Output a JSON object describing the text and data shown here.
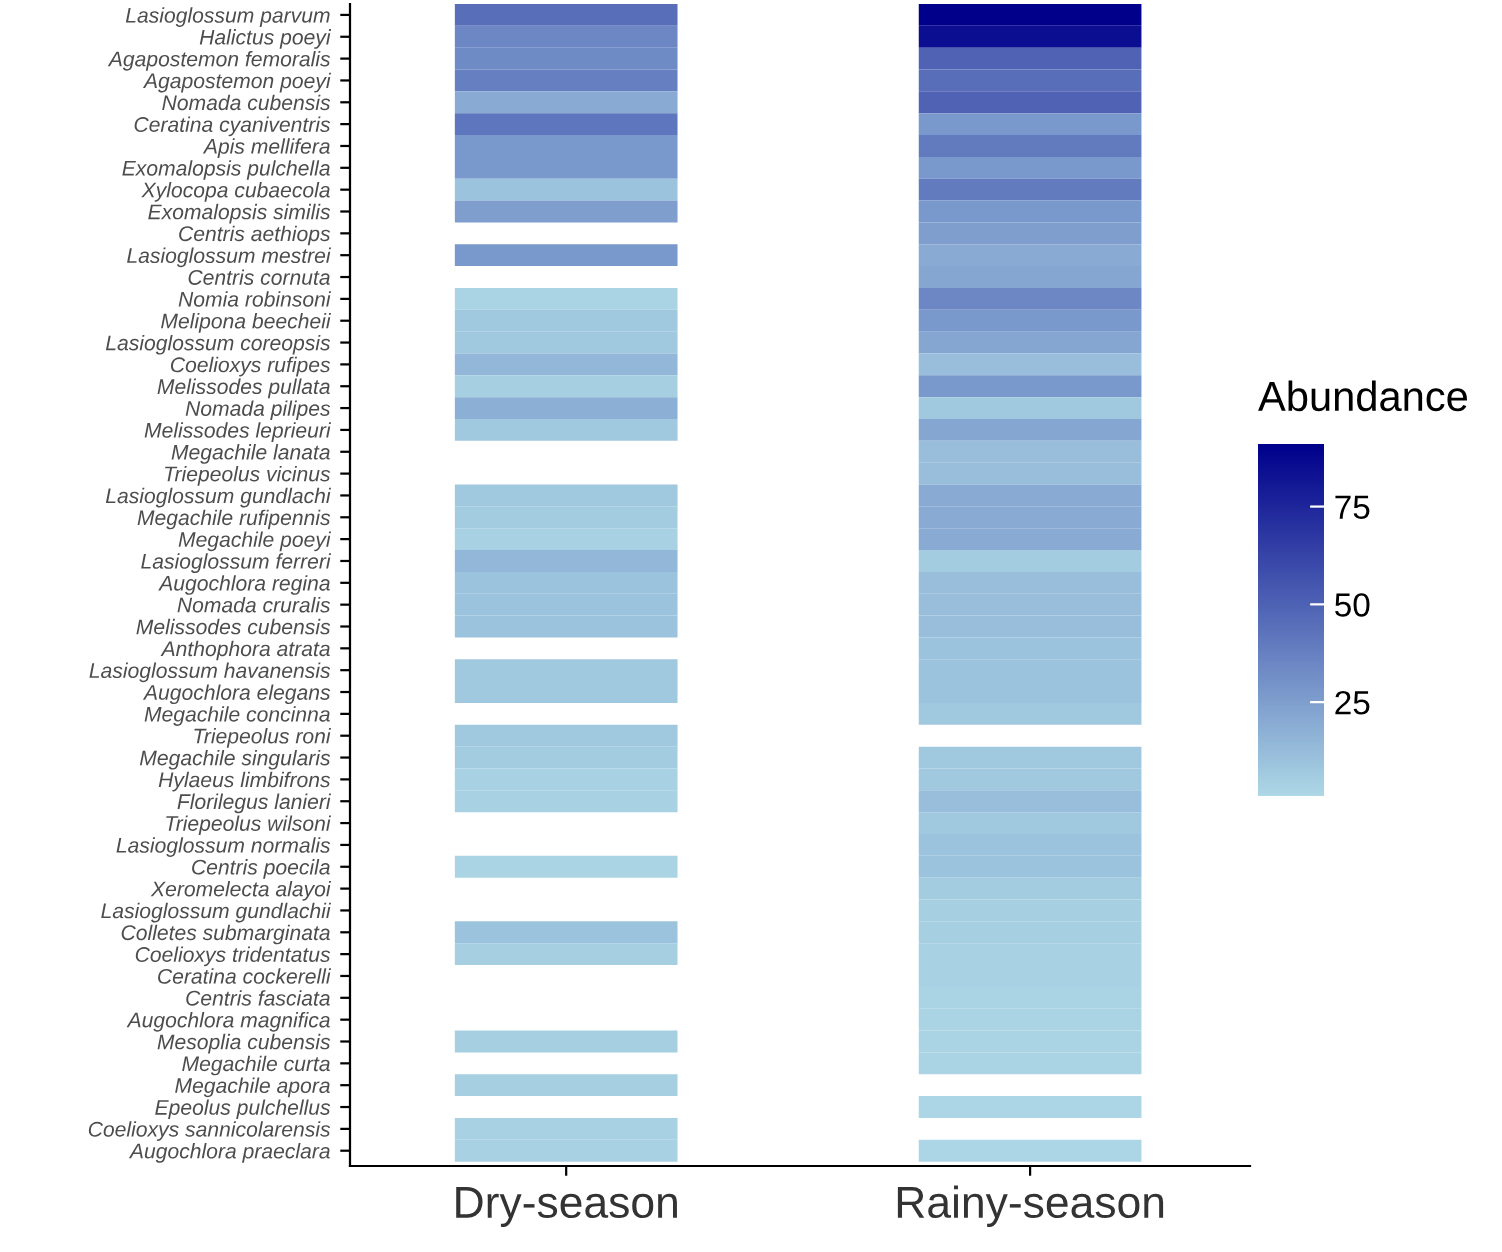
{
  "chart_data": {
    "type": "heatmap",
    "categories": [
      "Dry-season",
      "Rainy-season"
    ],
    "y_categories": [
      "Lasioglossum parvum",
      "Halictus poeyi",
      "Agapostemon femoralis",
      "Agapostemon poeyi",
      "Nomada cubensis",
      "Ceratina cyaniventris",
      "Apis mellifera",
      "Exomalopsis pulchella",
      "Xylocopa cubaecola",
      "Exomalopsis similis",
      "Centris aethiops",
      "Lasioglossum mestrei",
      "Centris cornuta",
      "Nomia robinsoni",
      "Melipona beecheii",
      "Lasioglossum coreopsis",
      "Coelioxys rufipes",
      "Melissodes pullata",
      "Nomada pilipes",
      "Melissodes leprieuri",
      "Megachile lanata",
      "Triepeolus vicinus",
      "Lasioglossum gundlachi",
      "Megachile rufipennis",
      "Megachile poeyi",
      "Lasioglossum ferreri",
      "Augochlora regina",
      "Nomada cruralis",
      "Melissodes cubensis",
      "Anthophora atrata",
      "Lasioglossum havanensis",
      "Augochlora elegans",
      "Megachile concinna",
      "Triepeolus roni",
      "Megachile singularis",
      "Hylaeus limbifrons",
      "Florilegus lanieri",
      "Triepeolus wilsoni",
      "Lasioglossum normalis",
      "Centris poecila",
      "Xeromelecta alayoi",
      "Lasioglossum gundlachii",
      "Colletes submarginata",
      "Coelioxys tridentatus",
      "Ceratina cockerelli",
      "Centris fasciata",
      "Augochlora magnifica",
      "Mesoplia cubensis",
      "Megachile curta",
      "Megachile apora",
      "Epeolus pulchellus",
      "Coelioxys sannicolarensis",
      "Augochlora praeclara"
    ],
    "cells": [
      [
        45,
        91
      ],
      [
        35,
        85
      ],
      [
        33,
        50
      ],
      [
        38,
        45
      ],
      [
        20,
        50
      ],
      [
        42,
        28
      ],
      [
        28,
        40
      ],
      [
        28,
        28
      ],
      [
        10,
        40
      ],
      [
        25,
        28
      ],
      [
        null,
        25
      ],
      [
        28,
        20
      ],
      [
        null,
        22
      ],
      [
        3,
        35
      ],
      [
        8,
        28
      ],
      [
        8,
        22
      ],
      [
        15,
        12
      ],
      [
        5,
        28
      ],
      [
        18,
        8
      ],
      [
        8,
        22
      ],
      [
        null,
        12
      ],
      [
        null,
        12
      ],
      [
        8,
        20
      ],
      [
        6,
        20
      ],
      [
        4,
        20
      ],
      [
        15,
        6
      ],
      [
        10,
        12
      ],
      [
        10,
        12
      ],
      [
        10,
        12
      ],
      [
        null,
        10
      ],
      [
        8,
        10
      ],
      [
        8,
        10
      ],
      [
        null,
        8
      ],
      [
        8,
        null
      ],
      [
        6,
        8
      ],
      [
        4,
        8
      ],
      [
        4,
        12
      ],
      [
        null,
        8
      ],
      [
        null,
        10
      ],
      [
        3,
        10
      ],
      [
        null,
        6
      ],
      [
        null,
        5
      ],
      [
        10,
        5
      ],
      [
        5,
        4
      ],
      [
        null,
        4
      ],
      [
        null,
        3
      ],
      [
        null,
        3
      ],
      [
        5,
        3
      ],
      [
        null,
        3
      ],
      [
        5,
        null
      ],
      [
        null,
        2
      ],
      [
        4,
        null
      ],
      [
        4,
        2
      ]
    ],
    "colors": [
      "#add8e6",
      "#00008b"
    ],
    "clabel": "Abundance",
    "clim": [
      1,
      91
    ],
    "cticks": [
      25,
      50,
      75
    ]
  }
}
